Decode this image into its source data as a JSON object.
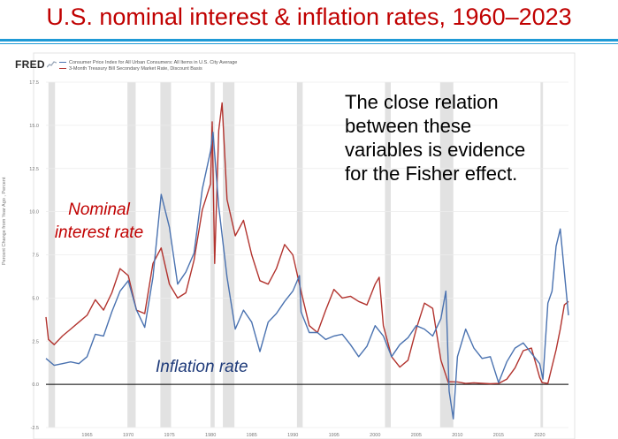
{
  "slide": {
    "title": "U.S. nominal interest & inflation rates, 1960–2023"
  },
  "fred": {
    "logo": "FRED",
    "logo_icon": "sparkline-icon"
  },
  "annotations": {
    "main": [
      "The close relation",
      "between these",
      "variables is evidence",
      "for the Fisher effect."
    ],
    "nominal": [
      "Nominal",
      "interest rate"
    ],
    "inflation": "Inflation rate"
  },
  "chart_data": {
    "type": "line",
    "ylabel": "Percent Change from Year Ago , Percent",
    "ylim": [
      -2.5,
      17.5
    ],
    "yticks": [
      -2.5,
      0.0,
      2.5,
      5.0,
      7.5,
      10.0,
      12.5,
      15.0,
      17.5
    ],
    "ytick_labels": [
      "-2.5",
      "0.0",
      "2.5",
      "5.0",
      "7.5",
      "10.0",
      "12.5",
      "15.0",
      "17.5"
    ],
    "xlim": [
      1960,
      2023.5
    ],
    "xticks": [
      1965,
      1970,
      1975,
      1980,
      1985,
      1990,
      1995,
      2000,
      2005,
      2010,
      2015,
      2020
    ],
    "xtick_labels": [
      "1965",
      "1970",
      "1975",
      "1980",
      "1985",
      "1990",
      "1995",
      "2000",
      "2005",
      "2010",
      "2015",
      "2020"
    ],
    "recessions": [
      [
        1960.3,
        1961.1
      ],
      [
        1969.9,
        1970.9
      ],
      [
        1973.9,
        1975.2
      ],
      [
        1980.0,
        1980.5
      ],
      [
        1981.5,
        1982.9
      ],
      [
        1990.5,
        1991.2
      ],
      [
        2001.2,
        2001.9
      ],
      [
        2007.9,
        2009.5
      ],
      [
        2020.1,
        2020.4
      ]
    ],
    "series": [
      {
        "name": "Consumer Price Index for All Urban Consumers: All Items in U.S. City Average",
        "color": "#4a72b0",
        "x": [
          1960,
          1961,
          1962,
          1963,
          1964,
          1965,
          1966,
          1967,
          1968,
          1969,
          1970,
          1971,
          1972,
          1973,
          1974,
          1975,
          1976,
          1977,
          1978,
          1979,
          1980,
          1980.3,
          1981,
          1982,
          1983,
          1984,
          1985,
          1986,
          1987,
          1988,
          1989,
          1990,
          1990.8,
          1991,
          1992,
          1993,
          1994,
          1995,
          1996,
          1997,
          1998,
          1999,
          2000,
          2001,
          2002,
          2003,
          2004,
          2005,
          2006,
          2007,
          2008,
          2008.6,
          2009,
          2009.5,
          2010,
          2011,
          2012,
          2013,
          2014,
          2015,
          2016,
          2017,
          2018,
          2019,
          2020,
          2020.4,
          2021,
          2021.5,
          2022,
          2022.5,
          2023,
          2023.5
        ],
        "values": [
          1.5,
          1.1,
          1.2,
          1.3,
          1.2,
          1.6,
          2.9,
          2.8,
          4.2,
          5.4,
          6.0,
          4.3,
          3.3,
          6.2,
          11.0,
          9.1,
          5.8,
          6.5,
          7.6,
          11.3,
          13.5,
          14.6,
          10.3,
          6.2,
          3.2,
          4.3,
          3.6,
          1.9,
          3.6,
          4.1,
          4.8,
          5.4,
          6.3,
          4.2,
          3.0,
          3.0,
          2.6,
          2.8,
          2.9,
          2.3,
          1.6,
          2.2,
          3.4,
          2.8,
          1.6,
          2.3,
          2.7,
          3.4,
          3.2,
          2.8,
          3.8,
          5.4,
          -0.4,
          -2.0,
          1.6,
          3.2,
          2.1,
          1.5,
          1.6,
          0.1,
          1.3,
          2.1,
          2.4,
          1.8,
          1.2,
          0.3,
          4.7,
          5.4,
          8.0,
          9.0,
          6.5,
          4.0
        ]
      },
      {
        "name": "3-Month Treasury Bill Secondary Market Rate, Discount Basis",
        "color": "#b2332e",
        "x": [
          1960,
          1960.3,
          1961,
          1962,
          1963,
          1964,
          1965,
          1966,
          1967,
          1968,
          1969,
          1970,
          1971,
          1972,
          1973,
          1974,
          1975,
          1976,
          1977,
          1978,
          1979,
          1980,
          1980.2,
          1980.5,
          1981,
          1981.4,
          1982,
          1983,
          1984,
          1985,
          1986,
          1987,
          1988,
          1989,
          1990,
          1991,
          1992,
          1993,
          1994,
          1995,
          1996,
          1997,
          1998,
          1999,
          2000,
          2000.5,
          2001,
          2002,
          2003,
          2004,
          2005,
          2006,
          2007,
          2008,
          2008.9,
          2009,
          2010,
          2011,
          2012,
          2013,
          2014,
          2015,
          2016,
          2017,
          2018,
          2019,
          2020,
          2020.3,
          2021,
          2022,
          2022.5,
          2023,
          2023.5
        ],
        "values": [
          3.9,
          2.6,
          2.3,
          2.8,
          3.2,
          3.6,
          4.0,
          4.9,
          4.3,
          5.3,
          6.7,
          6.3,
          4.3,
          4.1,
          7.0,
          7.9,
          5.8,
          5.0,
          5.3,
          7.2,
          10.1,
          11.6,
          15.2,
          7.0,
          14.7,
          16.3,
          10.7,
          8.6,
          9.5,
          7.5,
          6.0,
          5.8,
          6.7,
          8.1,
          7.5,
          5.4,
          3.4,
          3.0,
          4.3,
          5.5,
          5.0,
          5.1,
          4.8,
          4.6,
          5.8,
          6.2,
          3.4,
          1.6,
          1.0,
          1.4,
          3.2,
          4.7,
          4.4,
          1.4,
          0.1,
          0.15,
          0.14,
          0.05,
          0.09,
          0.06,
          0.03,
          0.05,
          0.3,
          0.95,
          1.95,
          2.1,
          0.4,
          0.1,
          0.05,
          2.0,
          3.2,
          4.6,
          4.8
        ]
      }
    ]
  }
}
